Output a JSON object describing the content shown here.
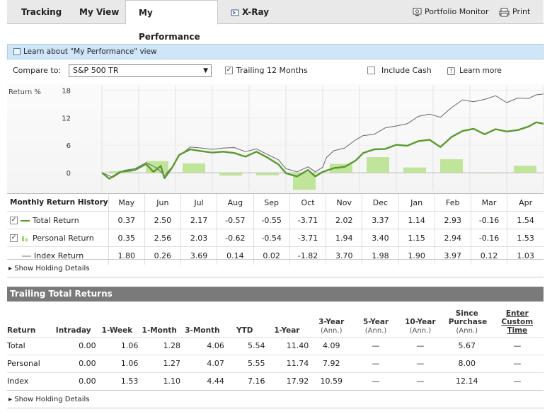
{
  "tabs": [
    {
      "label": "Tracking",
      "active": false
    },
    {
      "label": "My View",
      "active": false
    },
    {
      "label": "My Performance",
      "active": true
    },
    {
      "label": "X-Ray",
      "active": false
    }
  ],
  "tools": {
    "portfolio_monitor": "Portfolio Monitor",
    "print": "Print"
  },
  "banner": {
    "text": "Learn about \"My Performance\" view"
  },
  "compare": {
    "label": "Compare to:",
    "selected": "S&P 500 TR",
    "trailing_label": "Trailing 12 Months",
    "trailing_checked": true,
    "include_cash_label": "Include Cash",
    "include_cash_checked": false,
    "learn_more": "Learn more"
  },
  "colors": {
    "total": "#5a9a2c",
    "personal_bar": "#b6e08a",
    "index": "#666666",
    "tab_active_bg": "#ffffff",
    "banner": "#cfe6f6",
    "section_header": "#7a7a7a"
  },
  "chart_data": {
    "type": "line",
    "ylabel": "Return %",
    "yticks": [
      0,
      6,
      12,
      18
    ],
    "ylim": [
      -4,
      19
    ],
    "months": [
      "May",
      "Jun",
      "Jul",
      "Aug",
      "Sep",
      "Oct",
      "Nov",
      "Dec",
      "Jan",
      "Feb",
      "Mar",
      "Apr"
    ],
    "bars_personal": [
      0.35,
      2.56,
      2.03,
      -0.62,
      -0.54,
      -3.71,
      1.94,
      3.4,
      1.15,
      2.94,
      -0.16,
      1.53
    ],
    "series": [
      {
        "name": "Total Return",
        "points": [
          [
            0,
            0
          ],
          [
            0.2,
            -1.3
          ],
          [
            0.5,
            0.2
          ],
          [
            0.9,
            0.6
          ],
          [
            1.2,
            1.9
          ],
          [
            1.4,
            0.2
          ],
          [
            1.6,
            1.5
          ],
          [
            1.7,
            -1.2
          ],
          [
            1.9,
            1.0
          ],
          [
            2.1,
            3.9
          ],
          [
            2.4,
            5.1
          ],
          [
            2.7,
            4.7
          ],
          [
            3.0,
            4.4
          ],
          [
            3.3,
            4.6
          ],
          [
            3.6,
            4.3
          ],
          [
            3.9,
            3.5
          ],
          [
            4.2,
            4.6
          ],
          [
            4.5,
            3.3
          ],
          [
            4.8,
            1.8
          ],
          [
            5.0,
            -0.1
          ],
          [
            5.3,
            -0.8
          ],
          [
            5.6,
            0.6
          ],
          [
            5.8,
            -0.8
          ],
          [
            6.0,
            0.2
          ],
          [
            6.3,
            1.0
          ],
          [
            6.6,
            1.3
          ],
          [
            6.9,
            2.7
          ],
          [
            7.1,
            4.3
          ],
          [
            7.4,
            5.1
          ],
          [
            7.7,
            5.2
          ],
          [
            8.0,
            6.1
          ],
          [
            8.3,
            5.9
          ],
          [
            8.6,
            6.9
          ],
          [
            8.9,
            7.2
          ],
          [
            9.2,
            5.6
          ],
          [
            9.5,
            7.8
          ],
          [
            9.8,
            9.1
          ],
          [
            10.1,
            9.6
          ],
          [
            10.4,
            8.4
          ],
          [
            10.7,
            9.5
          ],
          [
            11.0,
            9.0
          ],
          [
            11.3,
            9.3
          ],
          [
            11.6,
            10.1
          ],
          [
            11.8,
            11.0
          ],
          [
            12.0,
            10.7
          ]
        ]
      },
      {
        "name": "Index Return",
        "points": [
          [
            0,
            0
          ],
          [
            0.3,
            -1.0
          ],
          [
            0.6,
            0.5
          ],
          [
            0.9,
            0.9
          ],
          [
            1.2,
            2.2
          ],
          [
            1.5,
            1.0
          ],
          [
            1.7,
            -0.6
          ],
          [
            1.9,
            1.2
          ],
          [
            2.1,
            3.7
          ],
          [
            2.4,
            5.6
          ],
          [
            2.7,
            5.4
          ],
          [
            3.0,
            5.1
          ],
          [
            3.3,
            5.4
          ],
          [
            3.6,
            5.5
          ],
          [
            3.9,
            4.6
          ],
          [
            4.2,
            5.2
          ],
          [
            4.5,
            4.0
          ],
          [
            4.8,
            2.8
          ],
          [
            5.0,
            0.9
          ],
          [
            5.3,
            0.2
          ],
          [
            5.6,
            1.3
          ],
          [
            5.8,
            0.2
          ],
          [
            6.0,
            1.2
          ],
          [
            6.1,
            3.3
          ],
          [
            6.3,
            4.8
          ],
          [
            6.6,
            5.4
          ],
          [
            6.9,
            7.2
          ],
          [
            7.1,
            8.1
          ],
          [
            7.4,
            8.4
          ],
          [
            7.7,
            9.8
          ],
          [
            8.0,
            10.2
          ],
          [
            8.3,
            10.7
          ],
          [
            8.6,
            12.3
          ],
          [
            8.9,
            12.8
          ],
          [
            9.2,
            12.1
          ],
          [
            9.5,
            14.2
          ],
          [
            9.8,
            15.9
          ],
          [
            10.1,
            15.5
          ],
          [
            10.4,
            16.0
          ],
          [
            10.7,
            16.8
          ],
          [
            11.0,
            15.3
          ],
          [
            11.3,
            16.3
          ],
          [
            11.6,
            16.2
          ],
          [
            11.8,
            17.0
          ],
          [
            12.0,
            17.2
          ]
        ]
      }
    ]
  },
  "monthly": {
    "header": "Monthly Return History",
    "months": [
      "May",
      "Jun",
      "Jul",
      "Aug",
      "Sep",
      "Oct",
      "Nov",
      "Dec",
      "Jan",
      "Feb",
      "Mar",
      "Apr"
    ],
    "rows": [
      {
        "label": "Total Return",
        "checked": true,
        "icon": "green-line-icon",
        "values": [
          "0.37",
          "2.50",
          "2.17",
          "-0.57",
          "-0.55",
          "-3.71",
          "2.02",
          "3.37",
          "1.14",
          "2.93",
          "-0.16",
          "1.54"
        ]
      },
      {
        "label": "Personal Return",
        "checked": true,
        "icon": "green-bar-icon",
        "values": [
          "0.35",
          "2.56",
          "2.03",
          "-0.62",
          "-0.54",
          "-3.71",
          "1.94",
          "3.40",
          "1.15",
          "2.94",
          "-0.16",
          "1.53"
        ]
      },
      {
        "label": "Index Return",
        "checked": false,
        "icon": "gray-line-icon",
        "values": [
          "1.80",
          "0.26",
          "3.69",
          "0.14",
          "0.02",
          "-1.82",
          "3.70",
          "1.98",
          "1.90",
          "3.97",
          "0.12",
          "1.03"
        ]
      }
    ],
    "show_holding": "Show Holding Details"
  },
  "trailing": {
    "title": "Trailing Total Returns",
    "columns": [
      {
        "label": "Return",
        "sub": ""
      },
      {
        "label": "Intraday",
        "sub": ""
      },
      {
        "label": "1-Week",
        "sub": ""
      },
      {
        "label": "1-Month",
        "sub": ""
      },
      {
        "label": "3-Month",
        "sub": ""
      },
      {
        "label": "YTD",
        "sub": ""
      },
      {
        "label": "1-Year",
        "sub": ""
      },
      {
        "label": "3-Year",
        "sub": "(Ann.)"
      },
      {
        "label": "5-Year",
        "sub": "(Ann.)"
      },
      {
        "label": "10-Year",
        "sub": "(Ann.)"
      },
      {
        "label": "Since Purchase",
        "sub": "(Ann.)"
      },
      {
        "label": "Enter Custom Time",
        "sub": ""
      }
    ],
    "rows": [
      {
        "label": "Total",
        "values": [
          "0.00",
          "1.06",
          "1.28",
          "4.06",
          "5.54",
          "11.40",
          "4.09",
          "—",
          "—",
          "5.67",
          "—"
        ]
      },
      {
        "label": "Personal",
        "values": [
          "0.00",
          "1.06",
          "1.27",
          "4.07",
          "5.55",
          "11.74",
          "7.92",
          "—",
          "—",
          "8.00",
          "—"
        ]
      },
      {
        "label": "Index",
        "values": [
          "0.00",
          "1.53",
          "1.10",
          "4.44",
          "7.16",
          "17.92",
          "10.59",
          "—",
          "—",
          "12.14",
          "—"
        ]
      }
    ],
    "show_holding": "Show Holding Details"
  }
}
